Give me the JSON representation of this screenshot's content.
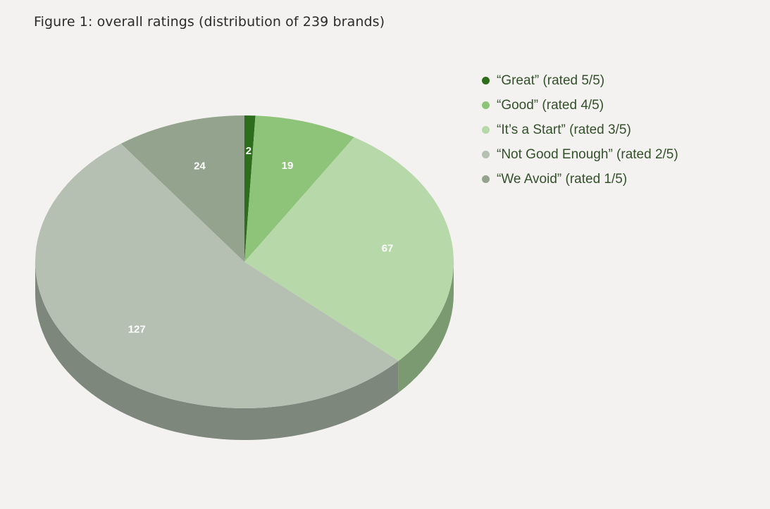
{
  "figure": {
    "title": "Figure 1: overall ratings (distribution of 239 brands)"
  },
  "chart_data": {
    "type": "pie",
    "style": "3d",
    "title": "Figure 1: overall ratings (distribution of 239 brands)",
    "total": 239,
    "legend_position": "right",
    "slices": [
      {
        "label": "“Great” (rated 5/5)",
        "value": 2,
        "color": "#2d6e1d",
        "side_color": "#1f4d14"
      },
      {
        "label": "“Good” (rated 4/5)",
        "value": 19,
        "color": "#8ec47a",
        "side_color": "#637f56"
      },
      {
        "label": "“It’s a Start” (rated 3/5)",
        "value": 67,
        "color": "#b7d8a8",
        "side_color": "#7c9a72"
      },
      {
        "label": "“Not Good Enough” (rated 2/5)",
        "value": 127,
        "color": "#b5c0b3",
        "side_color": "#7e877c"
      },
      {
        "label": "“We Avoid” (rated 1/5)",
        "value": 24,
        "color": "#93a38e",
        "side_color": "#687565"
      }
    ]
  }
}
